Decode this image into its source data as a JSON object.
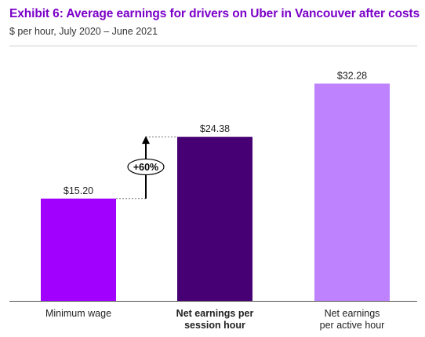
{
  "header": {
    "title": "Exhibit 6: Average earnings for drivers on Uber in Vancouver after costs",
    "subtitle": "$ per hour, July 2020 – June 2021"
  },
  "chart_data": {
    "type": "bar",
    "title": "Exhibit 6: Average earnings for drivers on Uber in Vancouver after costs",
    "subtitle": "$ per hour, July 2020 – June 2021",
    "categories": [
      [
        "Minimum wage"
      ],
      [
        "Net earnings per",
        "session hour"
      ],
      [
        "Net earnings",
        "per active hour"
      ]
    ],
    "values": [
      15.2,
      24.38,
      32.28
    ],
    "value_labels": [
      "$15.20",
      "$24.38",
      "$32.28"
    ],
    "bold_categories": [
      false,
      true,
      false
    ],
    "colors": [
      "#a100ff",
      "#460073",
      "#be82ff"
    ],
    "ylim": [
      0,
      34.9
    ],
    "grid": false,
    "annotation": {
      "label": "+60%",
      "from_index": 0,
      "to_index": 1
    }
  }
}
